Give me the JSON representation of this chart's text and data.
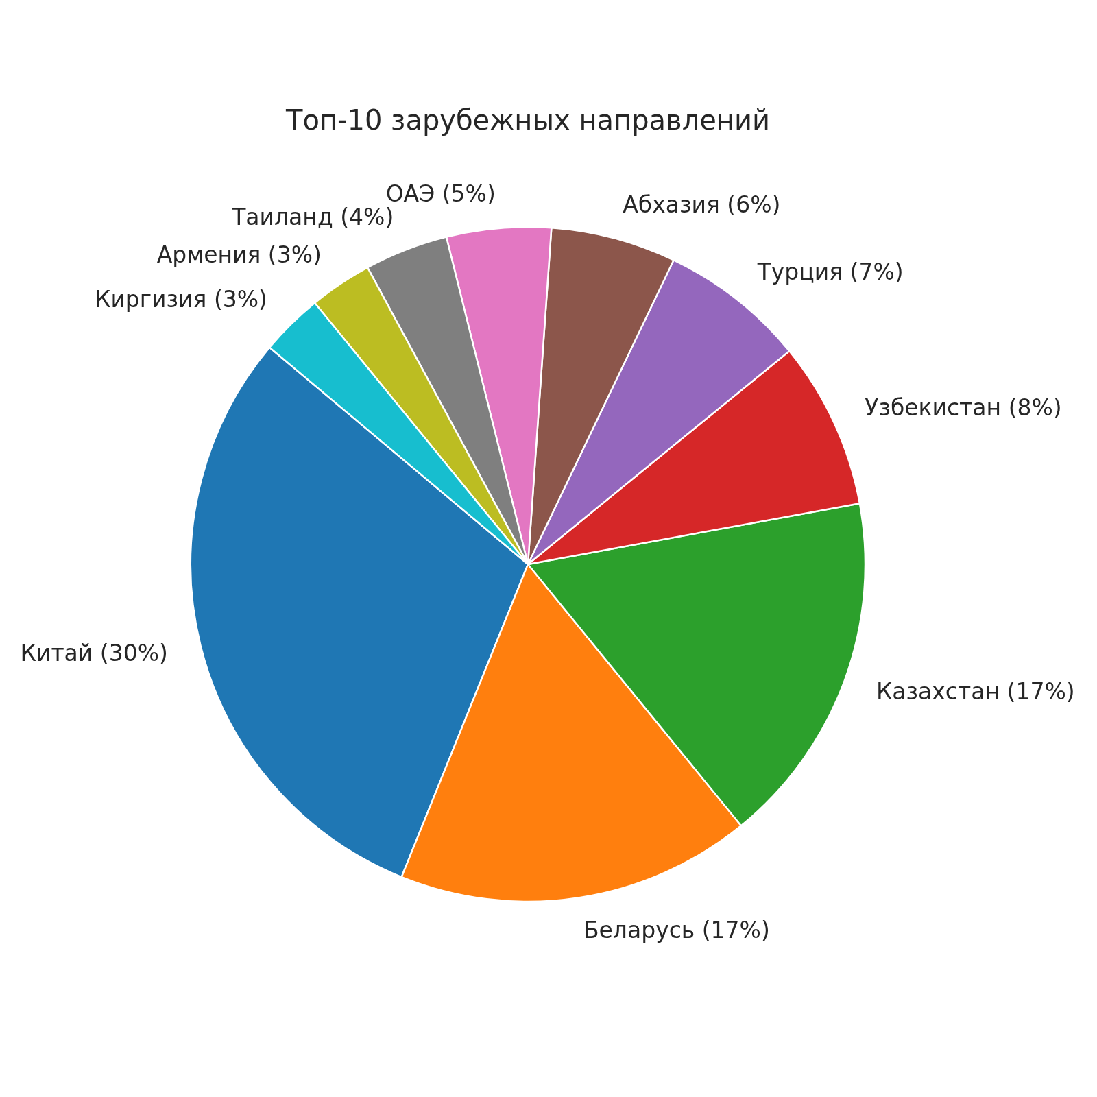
{
  "chart_data": {
    "type": "pie",
    "title": "Топ-10 зарубежных направлений",
    "categories": [
      "Китай",
      "Беларусь",
      "Казахстан",
      "Узбекистан",
      "Турция",
      "Абхазия",
      "ОАЭ",
      "Таиланд",
      "Армения",
      "Киргизия"
    ],
    "values": [
      30,
      17,
      17,
      8,
      7,
      6,
      5,
      4,
      3,
      3
    ],
    "colors": [
      "#1f77b4",
      "#ff7f0e",
      "#2ca02c",
      "#d62728",
      "#9467bd",
      "#8c564b",
      "#e377c2",
      "#7f7f7f",
      "#bcbd22",
      "#17becf"
    ],
    "value_labels": [
      "(30%)",
      "(17%)",
      "(17%)",
      "(8%)",
      "(7%)",
      "(6%)",
      "(5%)",
      "(4%)",
      "(3%)",
      "(3%)"
    ]
  }
}
